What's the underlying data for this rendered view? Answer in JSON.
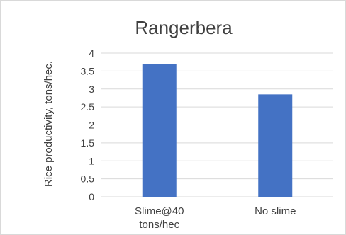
{
  "chart_data": {
    "type": "bar",
    "title": "Rangerbera",
    "xlabel": "",
    "ylabel": "Rice productivity, tons/hec.",
    "categories": [
      "Slime@40 tons/hec",
      "No slime"
    ],
    "category_lines": [
      [
        "Slime@40",
        "tons/hec"
      ],
      [
        "No slime"
      ]
    ],
    "values": [
      3.7,
      2.85
    ],
    "ylim": [
      0,
      4
    ],
    "yticks": [
      "0",
      "0.5",
      "1",
      "1.5",
      "2",
      "2.5",
      "3",
      "3.5",
      "4"
    ],
    "grid": true,
    "legend": "none",
    "bar_color": "#4472c4",
    "grid_color": "#d9d9d9"
  }
}
